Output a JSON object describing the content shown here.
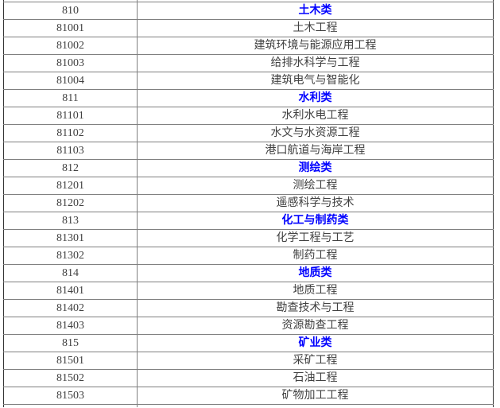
{
  "colors": {
    "background": "#ffffff",
    "grid_line": "#808080",
    "outer_border": "#333333",
    "body_text": "#404040",
    "category_text": "#0000ff"
  },
  "table": {
    "description": "Two-column table of discipline category codes and names, cropped mid-row at top and bottom",
    "rows": [
      {
        "code": "810",
        "name": "土木类",
        "kind": "category"
      },
      {
        "code": "81001",
        "name": "土木工程",
        "kind": "major"
      },
      {
        "code": "81002",
        "name": "建筑环境与能源应用工程",
        "kind": "major"
      },
      {
        "code": "81003",
        "name": "给排水科学与工程",
        "kind": "major"
      },
      {
        "code": "81004",
        "name": "建筑电气与智能化",
        "kind": "major"
      },
      {
        "code": "811",
        "name": "水利类",
        "kind": "category"
      },
      {
        "code": "81101",
        "name": "水利水电工程",
        "kind": "major"
      },
      {
        "code": "81102",
        "name": "水文与水资源工程",
        "kind": "major"
      },
      {
        "code": "81103",
        "name": "港口航道与海岸工程",
        "kind": "major"
      },
      {
        "code": "812",
        "name": "测绘类",
        "kind": "category"
      },
      {
        "code": "81201",
        "name": "测绘工程",
        "kind": "major"
      },
      {
        "code": "81202",
        "name": "遥感科学与技术",
        "kind": "major"
      },
      {
        "code": "813",
        "name": "化工与制药类",
        "kind": "category"
      },
      {
        "code": "81301",
        "name": "化学工程与工艺",
        "kind": "major"
      },
      {
        "code": "81302",
        "name": "制药工程",
        "kind": "major"
      },
      {
        "code": "814",
        "name": "地质类",
        "kind": "category"
      },
      {
        "code": "81401",
        "name": "地质工程",
        "kind": "major"
      },
      {
        "code": "81402",
        "name": "勘查技术与工程",
        "kind": "major"
      },
      {
        "code": "81403",
        "name": "资源勘查工程",
        "kind": "major"
      },
      {
        "code": "815",
        "name": "矿业类",
        "kind": "category"
      },
      {
        "code": "81501",
        "name": "采矿工程",
        "kind": "major"
      },
      {
        "code": "81502",
        "name": "石油工程",
        "kind": "major"
      },
      {
        "code": "81503",
        "name": "矿物加工工程",
        "kind": "major"
      }
    ]
  }
}
